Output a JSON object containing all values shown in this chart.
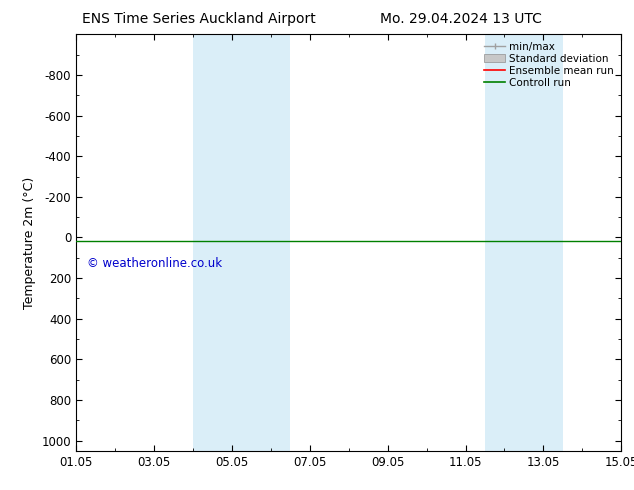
{
  "title_left": "ENS Time Series Auckland Airport",
  "title_right": "Mo. 29.04.2024 13 UTC",
  "ylabel": "Temperature 2m (°C)",
  "ylim_bottom": 1050,
  "ylim_top": -1000,
  "yticks": [
    -800,
    -600,
    -400,
    -200,
    0,
    200,
    400,
    600,
    800,
    1000
  ],
  "xlim": [
    0,
    14
  ],
  "xtick_labels": [
    "01.05",
    "03.05",
    "05.05",
    "07.05",
    "09.05",
    "11.05",
    "13.05",
    "15.05"
  ],
  "xtick_positions": [
    0,
    2,
    4,
    6,
    8,
    10,
    12,
    14
  ],
  "shaded_bands": [
    {
      "x_start": 3.0,
      "x_end": 5.5,
      "color": "#daeef8"
    },
    {
      "x_start": 10.5,
      "x_end": 12.5,
      "color": "#daeef8"
    }
  ],
  "control_run_y": 15,
  "control_run_color": "#008000",
  "ensemble_mean_color": "#ff0000",
  "watermark_text": "© weatheronline.co.uk",
  "watermark_color": "#0000cc",
  "bg_color": "#ffffff",
  "plot_bg_color": "#ffffff",
  "legend_items": [
    "min/max",
    "Standard deviation",
    "Ensemble mean run",
    "Controll run"
  ],
  "legend_colors": [
    "#a0a0a0",
    "#c8c8c8",
    "#ff0000",
    "#008000"
  ],
  "title_fontsize": 10,
  "axis_fontsize": 9,
  "tick_fontsize": 8.5
}
